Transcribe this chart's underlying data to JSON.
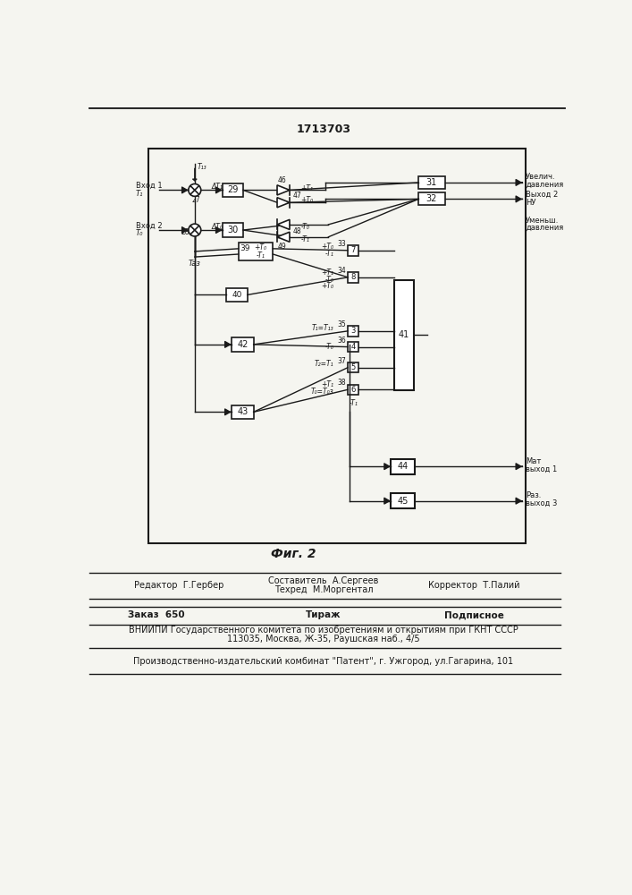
{
  "title": "1713703",
  "fig_label": "Фиг. 2",
  "bg_color": "#f5f5f0",
  "line_color": "#1a1a1a",
  "vniiipi_line": "ВНИИПИ Государственного комитета по изобретениям и открытиям при ГКНТ СССР",
  "address_line": "113035, Москва, Ж-35, Раушская наб., 4/5",
  "factory_line": "Производственно-издательский комбинат \"Патент\", г. Ужгород, ул.Гагарина, 101"
}
